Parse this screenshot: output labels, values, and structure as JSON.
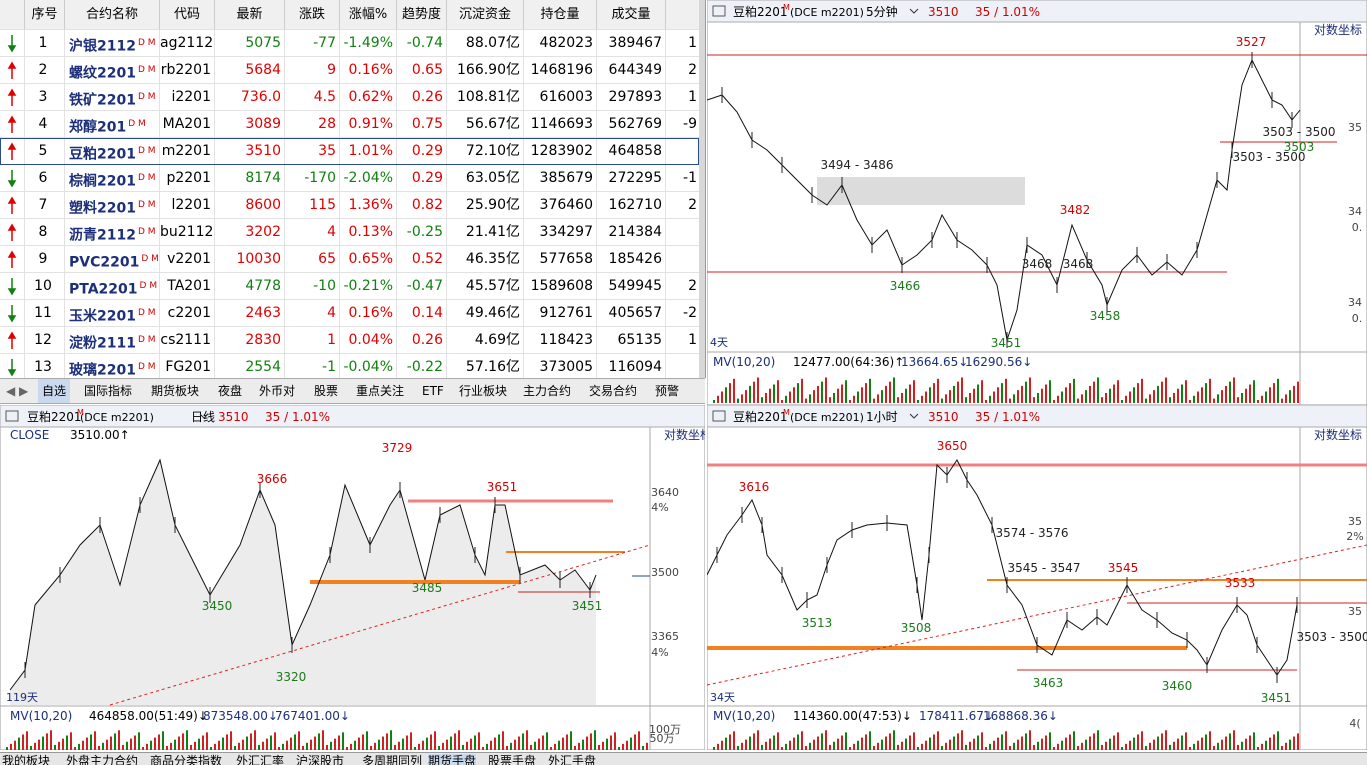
{
  "table": {
    "headers": [
      "序号",
      "合约名称",
      "代码",
      "最新",
      "涨跌",
      "涨幅%",
      "趋势度",
      "沉淀资金",
      "持仓量",
      "成交量"
    ],
    "rows": [
      {
        "arrow": "down",
        "no": "1",
        "name": "沪银2112",
        "tag": "D M",
        "code": "ag2112",
        "last": "5075",
        "chg": "-77",
        "pct": "-1.49%",
        "trend": "-0.74",
        "fund": "88.07亿",
        "oi": "482023",
        "vol": "389467",
        "extra": "1"
      },
      {
        "arrow": "up",
        "no": "2",
        "name": "螺纹2201",
        "tag": "D M",
        "code": "rb2201",
        "last": "5684",
        "chg": "9",
        "pct": "0.16%",
        "trend": "0.65",
        "fund": "166.90亿",
        "oi": "1468196",
        "vol": "644349",
        "extra": "2"
      },
      {
        "arrow": "up",
        "no": "3",
        "name": "铁矿2201",
        "tag": "D M",
        "code": "i2201",
        "last": "736.0",
        "chg": "4.5",
        "pct": "0.62%",
        "trend": "0.26",
        "fund": "108.81亿",
        "oi": "616003",
        "vol": "297893",
        "extra": "1"
      },
      {
        "arrow": "up",
        "no": "4",
        "name": "郑醇201",
        "tag": "D M",
        "code": "MA201",
        "last": "3089",
        "chg": "28",
        "pct": "0.91%",
        "trend": "0.75",
        "fund": "56.67亿",
        "oi": "1146693",
        "vol": "562769",
        "extra": "-9"
      },
      {
        "arrow": "up",
        "no": "5",
        "name": "豆粕2201",
        "tag": "D M",
        "code": "m2201",
        "last": "3510",
        "chg": "35",
        "pct": "1.01%",
        "trend": "0.29",
        "fund": "72.10亿",
        "oi": "1283902",
        "vol": "464858"
      },
      {
        "arrow": "down",
        "no": "6",
        "name": "棕榈2201",
        "tag": "D M",
        "code": "p2201",
        "last": "8174",
        "chg": "-170",
        "pct": "-2.04%",
        "trend": "0.29",
        "fund": "63.05亿",
        "oi": "385679",
        "vol": "272295",
        "extra": "-1"
      },
      {
        "arrow": "up",
        "no": "7",
        "name": "塑料2201",
        "tag": "D M",
        "code": "l2201",
        "last": "8600",
        "chg": "115",
        "pct": "1.36%",
        "trend": "0.82",
        "fund": "25.90亿",
        "oi": "376460",
        "vol": "162710",
        "extra": "2"
      },
      {
        "arrow": "up",
        "no": "8",
        "name": "沥青2112",
        "tag": "D M",
        "code": "bu2112",
        "last": "3202",
        "chg": "4",
        "pct": "0.13%",
        "trend": "-0.25",
        "fund": "21.41亿",
        "oi": "334297",
        "vol": "214384"
      },
      {
        "arrow": "up",
        "no": "9",
        "name": "PVC2201",
        "tag": "D M",
        "code": "v2201",
        "last": "10030",
        "chg": "65",
        "pct": "0.65%",
        "trend": "0.52",
        "fund": "46.35亿",
        "oi": "577658",
        "vol": "185426"
      },
      {
        "arrow": "down",
        "no": "10",
        "name": "PTA2201",
        "tag": "D M",
        "code": "TA201",
        "last": "4778",
        "chg": "-10",
        "pct": "-0.21%",
        "trend": "-0.47",
        "fund": "45.57亿",
        "oi": "1589608",
        "vol": "549945",
        "extra": "2"
      },
      {
        "arrow": "down",
        "no": "11",
        "name": "玉米2201",
        "tag": "D M",
        "code": "c2201",
        "last": "2463",
        "chg": "4",
        "pct": "0.16%",
        "trend": "0.14",
        "fund": "49.46亿",
        "oi": "912761",
        "vol": "405657",
        "extra": "-2"
      },
      {
        "arrow": "up",
        "no": "12",
        "name": "淀粉2111",
        "tag": "D M",
        "code": "cs2111",
        "last": "2830",
        "chg": "1",
        "pct": "0.04%",
        "trend": "0.26",
        "fund": "4.69亿",
        "oi": "118423",
        "vol": "65135",
        "extra": "1"
      },
      {
        "arrow": "down",
        "no": "13",
        "name": "玻璃2201",
        "tag": "D M",
        "code": "FG201",
        "last": "2554",
        "chg": "-1",
        "pct": "-0.04%",
        "trend": "-0.22",
        "fund": "57.16亿",
        "oi": "373005",
        "vol": "116094"
      }
    ]
  },
  "tabs": [
    "自选",
    "国际指标",
    "期货板块",
    "夜盘",
    "外币对",
    "股票",
    "重点关注",
    "ETF",
    "行业板块",
    "主力合约",
    "交易合约",
    "预警"
  ],
  "panels": [
    {
      "header": {
        "symbol": "豆粕2201",
        "sup": "M",
        "exch": "(DCE m2201)",
        "period": "5分钟",
        "price": "3510",
        "change": "35 / 1.01%"
      },
      "log": "对数坐标",
      "days": "4天",
      "indicator": {
        "name": "MV(10,20)",
        "values": [
          "12477.00(64:36)↑",
          "13664.65↓",
          "16290.56↓"
        ]
      },
      "annotations": [
        {
          "text": "3527",
          "color": "#d00000"
        },
        {
          "text": "3494 - 3486",
          "color": "#222"
        },
        {
          "text": "3482",
          "color": "#d00000"
        },
        {
          "text": "3466",
          "color": "#1a7a1a"
        },
        {
          "text": "3468",
          "color": "#222"
        },
        {
          "text": "3468",
          "color": "#222"
        },
        {
          "text": "3458",
          "color": "#1a7a1a"
        },
        {
          "text": "3451",
          "color": "#1a7a1a"
        },
        {
          "text": "3503 - 3500",
          "color": "#222"
        },
        {
          "text": "3503 - 3500",
          "color": "#222"
        },
        {
          "text": "3503",
          "color": "#1a7a1a"
        }
      ],
      "axis": [
        "35",
        "34",
        "0.",
        "34",
        "0."
      ]
    },
    {
      "header": {
        "symbol": "豆粕2201",
        "sup": "M",
        "exch": "(DCE m2201)",
        "period": "日线",
        "price": "3510",
        "change": "35 / 1.01%"
      },
      "log": "对数坐标",
      "days": "119天",
      "series_label": "CLOSE",
      "series_value": "3510.00↑",
      "indicator": {
        "name": "MV(10,20)",
        "values": [
          "464858.00(51:49)↓",
          "873548.00↓",
          "767401.00↓"
        ]
      },
      "annotations": [
        {
          "text": "3729",
          "color": "#d00000"
        },
        {
          "text": "3666",
          "color": "#d00000"
        },
        {
          "text": "3651",
          "color": "#d00000"
        },
        {
          "text": "3450",
          "color": "#1a7a1a"
        },
        {
          "text": "3485",
          "color": "#1a7a1a"
        },
        {
          "text": "3320",
          "color": "#1a7a1a"
        },
        {
          "text": "3451",
          "color": "#1a7a1a"
        }
      ],
      "axis": [
        "3640",
        "4%",
        "3500",
        "3365",
        "4%",
        "100万",
        "50万"
      ]
    },
    {
      "header": {
        "symbol": "豆粕2201",
        "sup": "M",
        "exch": "(DCE m2201)",
        "period": "1小时",
        "price": "3510",
        "change": "35 / 1.01%"
      },
      "log": "对数坐标",
      "days": "34天",
      "indicator": {
        "name": "MV(10,20)",
        "values": [
          "114360.00(47:53)↓",
          "178411.67↓",
          "168868.36↓"
        ]
      },
      "annotations": [
        {
          "text": "3650",
          "color": "#d00000"
        },
        {
          "text": "3616",
          "color": "#d00000"
        },
        {
          "text": "3574 - 3576",
          "color": "#222"
        },
        {
          "text": "3545 - 3547",
          "color": "#222"
        },
        {
          "text": "3545",
          "color": "#d00000"
        },
        {
          "text": "3533",
          "color": "#d00000"
        },
        {
          "text": "3513",
          "color": "#1a7a1a"
        },
        {
          "text": "3508",
          "color": "#1a7a1a"
        },
        {
          "text": "3463",
          "color": "#1a7a1a"
        },
        {
          "text": "3460",
          "color": "#1a7a1a"
        },
        {
          "text": "3451",
          "color": "#1a7a1a"
        },
        {
          "text": "3503 - 3500",
          "color": "#222"
        }
      ],
      "axis": [
        "35",
        "2%",
        "35",
        "4("
      ]
    }
  ],
  "taskbar": [
    "我的板块",
    "外盘主力合约",
    "商品分类指数",
    "外汇汇率",
    "沪深股市",
    "多周期同列",
    "期货手盘",
    "股票手盘",
    "外汇手盘"
  ]
}
